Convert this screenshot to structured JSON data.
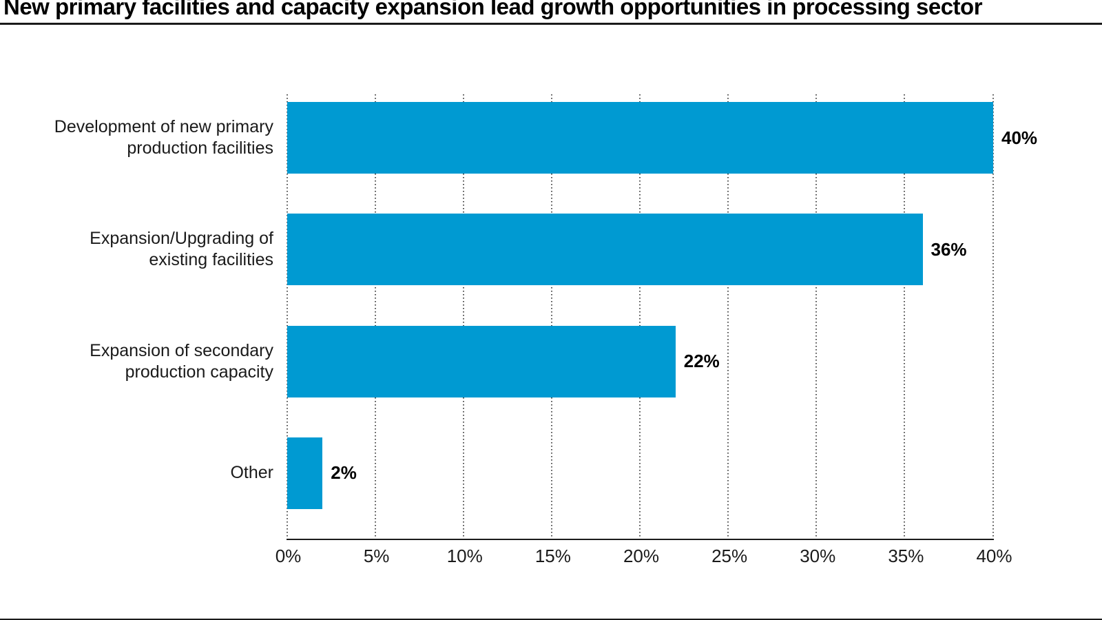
{
  "page": {
    "title": "New primary facilities and capacity expansion lead growth opportunities in processing sector"
  },
  "colors": {
    "bar": "#009AD2",
    "axis_line": "#1a1a1a",
    "gridline": "#4a4a4a",
    "rule": "#1a1a1a",
    "text": "#1a1a1a"
  },
  "chart_data": {
    "type": "bar",
    "orientation": "horizontal",
    "title": "New primary facilities and capacity expansion lead growth opportunities in processing sector",
    "categories": [
      [
        "Development of new primary",
        "production facilities"
      ],
      [
        "Expansion/Upgrading of",
        "existing facilities"
      ],
      [
        "Expansion of secondary",
        "production capacity"
      ],
      [
        "Other"
      ]
    ],
    "values": [
      40,
      36,
      22,
      2
    ],
    "value_labels": [
      "40%",
      "36%",
      "22%",
      "2%"
    ],
    "x_axis": {
      "range": [
        0,
        40
      ],
      "tick_values": [
        0,
        5,
        10,
        15,
        20,
        25,
        30,
        35,
        40
      ],
      "tick_labels": [
        "0%",
        "5%",
        "10%",
        "15%",
        "20%",
        "25%",
        "30%",
        "35%",
        "40%"
      ]
    },
    "grid": "dotted-vertical",
    "legend": "none",
    "bar_color": "#009AD2"
  }
}
